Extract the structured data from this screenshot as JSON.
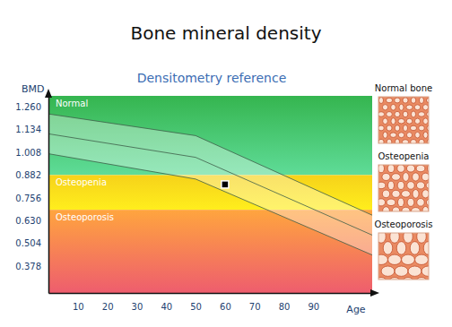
{
  "chart_data": {
    "type": "line",
    "title": "Bone mineral density",
    "subtitle": "Densitometry reference",
    "y_label": "BMD",
    "x_label": "Age",
    "x": [
      0,
      50,
      110
    ],
    "series": [
      {
        "color": "#3f5f4a",
        "values": [
          1.22,
          1.1,
          0.66
        ]
      },
      {
        "color": "#3f5f4a",
        "values": [
          1.11,
          0.98,
          0.55
        ]
      },
      {
        "color": "#3f5f4a",
        "values": [
          1.0,
          0.86,
          0.44
        ]
      }
    ],
    "zones": [
      {
        "label": "Normal",
        "range": [
          0.882,
          1.32
        ],
        "color": "#35b54f"
      },
      {
        "label": "Osteopenia",
        "range": [
          0.69,
          0.882
        ],
        "color": "#f6d21a"
      },
      {
        "label": "Osteoporosis",
        "range": [
          0.23,
          0.69
        ],
        "color": "#f59a3a"
      }
    ],
    "points": {
      "x": [
        60
      ],
      "y": [
        0.83
      ],
      "color": "#000000",
      "marker": "square"
    },
    "bone_panels": [
      "Normal bone",
      "Osteopenia",
      "Osteoporosis"
    ],
    "xlim": [
      0,
      110
    ],
    "ylim": [
      0.23,
      1.32
    ],
    "xticks": [
      10,
      20,
      30,
      40,
      50,
      60,
      70,
      80,
      90
    ],
    "yticks": [
      {
        "value": 1.26,
        "label": "1.260"
      },
      {
        "value": 1.134,
        "label": "1.134"
      },
      {
        "value": 1.008,
        "label": "1.008"
      },
      {
        "value": 0.882,
        "label": "0.882"
      },
      {
        "value": 0.756,
        "label": "0.756"
      },
      {
        "value": 0.63,
        "label": "0.630"
      },
      {
        "value": 0.504,
        "label": "0.504"
      },
      {
        "value": 0.378,
        "label": "0.378"
      }
    ],
    "grid": false
  }
}
